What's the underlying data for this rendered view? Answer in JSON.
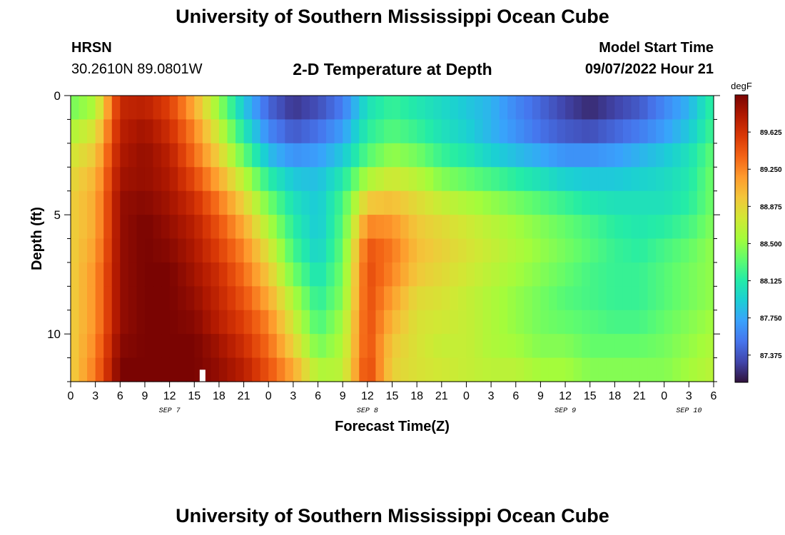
{
  "header": {
    "title": "University of Southern Mississippi Ocean Cube",
    "station": "HRSN",
    "coordinates": "30.2610N  89.0801W",
    "plot_title": "2-D Temperature at Depth",
    "start_label": "Model Start Time",
    "start_time": "09/07/2022 Hour 21"
  },
  "footer": {
    "title": "University of Southern Mississippi Ocean Cube"
  },
  "colors": {
    "scale": [
      "#30123b",
      "#4145ab",
      "#4675ed",
      "#39a2fc",
      "#1bcfd4",
      "#24eca6",
      "#61fc6c",
      "#a4fc3b",
      "#d1e834",
      "#f3c63a",
      "#fe9b2d",
      "#f36315",
      "#d93806",
      "#b11901",
      "#7a0402"
    ]
  },
  "chart_data": {
    "type": "heatmap",
    "title": "2-D Temperature at Depth",
    "xlabel": "Forecast Time(Z)",
    "ylabel": "Depth (ft)",
    "colorbar_label": "degF",
    "colorbar_ticks": [
      "87.375",
      "87.750",
      "88.125",
      "88.500",
      "88.875",
      "89.250",
      "89.625"
    ],
    "colorbar_range": [
      87.1,
      90.0
    ],
    "ylim": [
      0,
      12
    ],
    "y_ticks": [
      "0",
      "5",
      "10"
    ],
    "x_tick_labels": [
      "0",
      "3",
      "6",
      "9",
      "12",
      "15",
      "18",
      "21",
      "0",
      "3",
      "6",
      "9",
      "12",
      "15",
      "18",
      "21",
      "0",
      "3",
      "6",
      "9",
      "12",
      "15",
      "18",
      "21",
      "0",
      "3",
      "6"
    ],
    "date_labels": [
      {
        "label": "SEP 7",
        "tick_index": 4
      },
      {
        "label": "SEP 8",
        "tick_index": 12
      },
      {
        "label": "SEP 9",
        "tick_index": 20
      },
      {
        "label": "SEP 10",
        "tick_index": 25
      }
    ],
    "hours": [
      0,
      3,
      6,
      9,
      12,
      15,
      18,
      21,
      24,
      27,
      30,
      33,
      36,
      39,
      42,
      45,
      48,
      51,
      54,
      57,
      60,
      63,
      66,
      69,
      72,
      75,
      78
    ],
    "depths_ft": [
      0,
      1,
      2,
      3,
      4,
      5,
      6,
      7,
      8,
      9,
      10,
      11,
      12
    ],
    "temperature_degF": [
      [
        88.3,
        88.5,
        89.7,
        89.7,
        89.5,
        89.0,
        88.4,
        87.8,
        87.4,
        87.2,
        87.3,
        87.5,
        88.0,
        88.2,
        88.1,
        88.0,
        87.9,
        87.8,
        87.6,
        87.5,
        87.3,
        87.2,
        87.3,
        87.4,
        87.6,
        87.8,
        88.2
      ],
      [
        88.5,
        88.7,
        89.7,
        89.8,
        89.6,
        89.2,
        88.6,
        88.0,
        87.5,
        87.3,
        87.4,
        87.6,
        88.1,
        88.2,
        88.1,
        88.0,
        87.9,
        87.8,
        87.6,
        87.4,
        87.3,
        87.2,
        87.3,
        87.4,
        87.6,
        87.8,
        88.2
      ],
      [
        88.7,
        88.9,
        89.8,
        89.9,
        89.7,
        89.3,
        88.8,
        88.2,
        87.7,
        87.5,
        87.6,
        87.8,
        88.2,
        88.4,
        88.3,
        88.1,
        88.0,
        87.8,
        87.7,
        87.6,
        87.5,
        87.5,
        87.6,
        87.7,
        87.8,
        88.0,
        88.3
      ],
      [
        88.8,
        89.0,
        89.8,
        89.9,
        89.8,
        89.4,
        89.0,
        88.5,
        88.0,
        87.8,
        87.8,
        88.0,
        88.4,
        88.6,
        88.5,
        88.3,
        88.2,
        88.1,
        88.0,
        87.9,
        87.8,
        87.8,
        87.8,
        87.9,
        88.0,
        88.1,
        88.4
      ],
      [
        88.9,
        89.1,
        89.9,
        89.9,
        89.8,
        89.6,
        89.2,
        88.8,
        88.3,
        88.0,
        87.9,
        88.2,
        88.8,
        88.9,
        88.8,
        88.6,
        88.5,
        88.4,
        88.3,
        88.2,
        88.1,
        88.0,
        88.0,
        88.0,
        88.0,
        88.1,
        88.4
      ],
      [
        88.9,
        89.1,
        89.9,
        90.0,
        89.9,
        89.7,
        89.4,
        89.0,
        88.5,
        88.1,
        87.9,
        88.3,
        89.1,
        89.1,
        88.9,
        88.8,
        88.7,
        88.6,
        88.5,
        88.4,
        88.3,
        88.2,
        88.1,
        88.1,
        88.1,
        88.2,
        88.4
      ],
      [
        88.9,
        89.1,
        89.9,
        90.0,
        89.9,
        89.8,
        89.5,
        89.2,
        88.7,
        88.2,
        87.9,
        88.3,
        89.4,
        89.3,
        89.0,
        88.9,
        88.8,
        88.7,
        88.6,
        88.5,
        88.4,
        88.3,
        88.2,
        88.1,
        88.2,
        88.3,
        88.5
      ],
      [
        88.9,
        89.2,
        89.9,
        90.0,
        90.0,
        89.8,
        89.6,
        89.3,
        88.9,
        88.3,
        88.0,
        88.4,
        89.5,
        89.3,
        89.0,
        88.9,
        88.8,
        88.7,
        88.6,
        88.5,
        88.4,
        88.3,
        88.2,
        88.2,
        88.3,
        88.4,
        88.5
      ],
      [
        88.9,
        89.2,
        89.9,
        90.0,
        90.0,
        89.9,
        89.7,
        89.4,
        89.0,
        88.5,
        88.1,
        88.4,
        89.5,
        89.2,
        88.9,
        88.8,
        88.7,
        88.6,
        88.5,
        88.4,
        88.3,
        88.2,
        88.2,
        88.2,
        88.3,
        88.4,
        88.5
      ],
      [
        88.9,
        89.2,
        89.9,
        90.0,
        90.0,
        89.9,
        89.7,
        89.5,
        89.2,
        88.7,
        88.2,
        88.5,
        89.5,
        89.1,
        88.8,
        88.8,
        88.7,
        88.6,
        88.5,
        88.4,
        88.3,
        88.3,
        88.2,
        88.2,
        88.3,
        88.4,
        88.5
      ],
      [
        88.9,
        89.2,
        89.9,
        90.0,
        90.0,
        90.0,
        89.8,
        89.6,
        89.3,
        88.8,
        88.3,
        88.6,
        89.5,
        89.0,
        88.8,
        88.7,
        88.7,
        88.6,
        88.5,
        88.4,
        88.4,
        88.3,
        88.3,
        88.3,
        88.4,
        88.5,
        88.6
      ],
      [
        88.9,
        89.3,
        90.0,
        90.0,
        90.0,
        90.0,
        89.9,
        89.7,
        89.4,
        89.0,
        88.5,
        88.6,
        89.5,
        88.9,
        88.8,
        88.7,
        88.7,
        88.6,
        88.6,
        88.5,
        88.5,
        88.4,
        88.4,
        88.4,
        88.4,
        88.5,
        88.6
      ],
      [
        88.9,
        89.3,
        90.0,
        90.0,
        90.0,
        90.0,
        89.9,
        89.8,
        89.5,
        89.2,
        88.7,
        88.7,
        89.6,
        88.9,
        88.8,
        88.8,
        88.7,
        88.7,
        88.7,
        88.6,
        88.6,
        88.5,
        88.5,
        88.5,
        88.5,
        88.6,
        88.7
      ]
    ],
    "marker": {
      "hour": 16,
      "depth_ft": 11.5
    }
  }
}
